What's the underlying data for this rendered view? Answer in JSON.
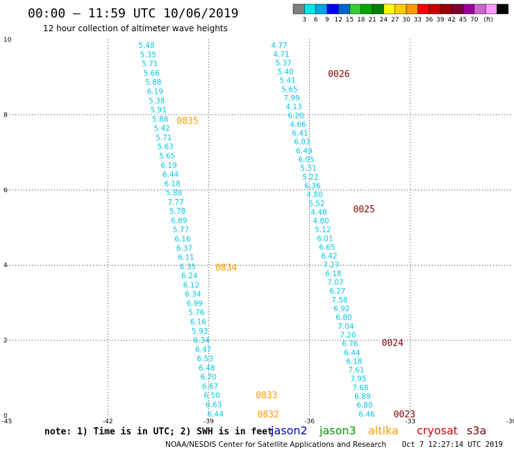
{
  "header": {
    "title": "00:00 – 11:59 UTC 10/06/2019",
    "subtitle": "12 hour collection of altimeter wave heights"
  },
  "color_scale": {
    "colors": [
      "#7f7f7f",
      "#00e5e5",
      "#00a6e5",
      "#0000ff",
      "#0066cc",
      "#33cc33",
      "#00a600",
      "#008000",
      "#ffff00",
      "#ffcc00",
      "#ff9900",
      "#ff0000",
      "#cc0000",
      "#990000",
      "#800033",
      "#990099",
      "#cc66cc",
      "#ff99ff",
      "#000000"
    ],
    "labels": [
      "3",
      "6",
      "9",
      "12",
      "15",
      "18",
      "21",
      "24",
      "27",
      "30",
      "33",
      "36",
      "39",
      "42",
      "45",
      "70",
      "(ft)"
    ]
  },
  "footer": {
    "note": "note: 1) Time is in UTC; 2) SWH is in feet",
    "credit": "NOAA/NESDIS Center for Satellite Applications and Research",
    "timestamp": "Oct  7 12:27:14 UTC 2019"
  },
  "legend": [
    {
      "name": "jason2",
      "color": "#0000cc"
    },
    {
      "name": "jason3",
      "color": "#009900"
    },
    {
      "name": "altika",
      "color": "#ff9900"
    },
    {
      "name": "cryosat",
      "color": "#cc0000"
    },
    {
      "name": "s3a",
      "color": "#800000"
    }
  ],
  "chart_data": {
    "type": "scatter",
    "xlim": [
      -45,
      -30
    ],
    "ylim": [
      0,
      10
    ],
    "x_ticks": [
      "-45",
      "-42",
      "-39",
      "-36",
      "-33",
      "-30"
    ],
    "y_ticks": [
      "0",
      "2",
      "4",
      "6",
      "8",
      "10"
    ],
    "grid": true,
    "value_color": "#00c8e6",
    "tracks": [
      {
        "name": "altika",
        "color": "#ff9900",
        "start": {
          "x": -40.85,
          "y": 9.85
        },
        "end": {
          "x": -38.8,
          "y": 0.05
        },
        "values": [
          "5.48",
          "5.35",
          "5.71",
          "5.66",
          "5.88",
          "6.19",
          "5.38",
          "5.91",
          "5.88",
          "5.42",
          "5.71",
          "5.63",
          "5.65",
          "6.19",
          "6.44",
          "6.18",
          "5.88",
          "7.77",
          "5.78",
          "6.69",
          "5.77",
          "6.16",
          "6.37",
          "6.11",
          "6.35",
          "6.24",
          "6.12",
          "6.34",
          "6.99",
          "5.76",
          "6.16",
          "5.93",
          "6.34",
          "6.47",
          "6.53",
          "6.48",
          "6.70",
          "6.67",
          "6.50",
          "6.63",
          "6.44"
        ],
        "times": [
          {
            "label": "0835",
            "x": -39.95,
            "y": 7.85
          },
          {
            "label": "0834",
            "x": -38.8,
            "y": 3.95
          },
          {
            "label": "0833",
            "x": -37.6,
            "y": 0.55
          },
          {
            "label": "0832",
            "x": -37.55,
            "y": 0.05
          }
        ]
      },
      {
        "name": "s3a",
        "color": "#800000",
        "start": {
          "x": -36.9,
          "y": 9.85
        },
        "end": {
          "x": -34.3,
          "y": 0.05
        },
        "values": [
          "4.77",
          "4.71",
          "5.37",
          "5.40",
          "5.41",
          "5.65",
          "7.99",
          "4.13",
          "6.20",
          "4.66",
          "6.41",
          "6.03",
          "6.49",
          "6.05",
          "5.31",
          "5.22",
          "6.36",
          "4.80",
          "5.52",
          "4.48",
          "4.80",
          "5.12",
          "6.01",
          "6.65",
          "6.42",
          "7.27",
          "6.18",
          "7.07",
          "6.27",
          "7.58",
          "6.92",
          "6.80",
          "7.04",
          "7.20",
          "6.76",
          "6.44",
          "6.18",
          "7.61",
          "7.95",
          "7.68",
          "6.89",
          "6.80",
          "6.46"
        ],
        "times": [
          {
            "label": "0026",
            "x": -35.45,
            "y": 9.1
          },
          {
            "label": "0025",
            "x": -34.7,
            "y": 5.5
          },
          {
            "label": "0024",
            "x": -33.85,
            "y": 1.95
          },
          {
            "label": "0023",
            "x": -33.5,
            "y": 0.05
          }
        ]
      }
    ]
  }
}
